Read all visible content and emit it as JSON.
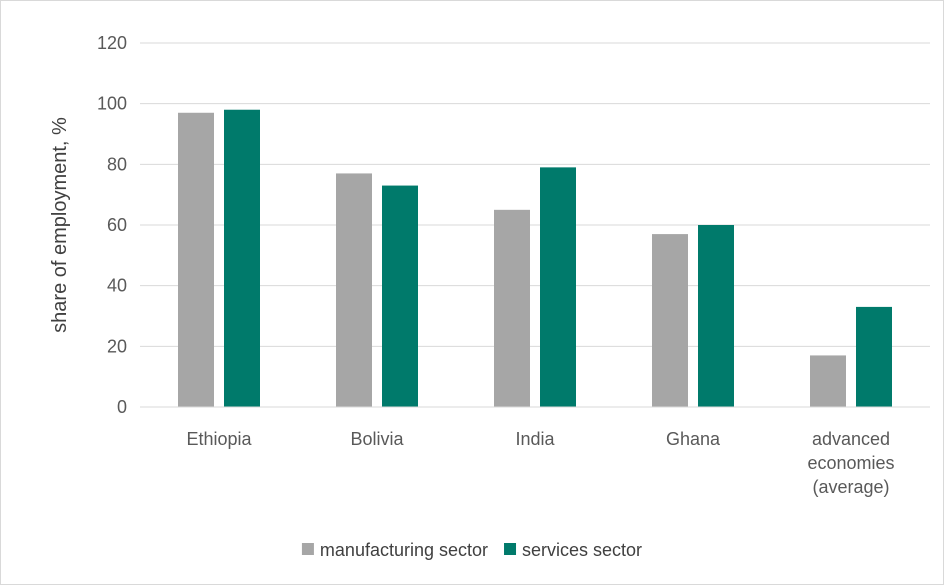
{
  "chart_data": {
    "type": "bar",
    "categories": [
      "Ethiopia",
      "Bolivia",
      "India",
      "Ghana",
      "advanced economies (average)"
    ],
    "category_lines": [
      [
        "Ethiopia"
      ],
      [
        "Bolivia"
      ],
      [
        "India"
      ],
      [
        "Ghana"
      ],
      [
        "advanced",
        "economies",
        "(average)"
      ]
    ],
    "series": [
      {
        "name": "manufacturing sector",
        "color": "#a6a6a6",
        "values": [
          97,
          77,
          65,
          57,
          17
        ]
      },
      {
        "name": "services sector",
        "color": "#007a6b",
        "values": [
          98,
          73,
          79,
          60,
          33
        ]
      }
    ],
    "xlabel": "",
    "ylabel": "share of employment, %",
    "ylim": [
      0,
      120
    ],
    "yticks": [
      0,
      20,
      40,
      60,
      80,
      100,
      120
    ],
    "grid": true,
    "legend_position": "bottom"
  }
}
